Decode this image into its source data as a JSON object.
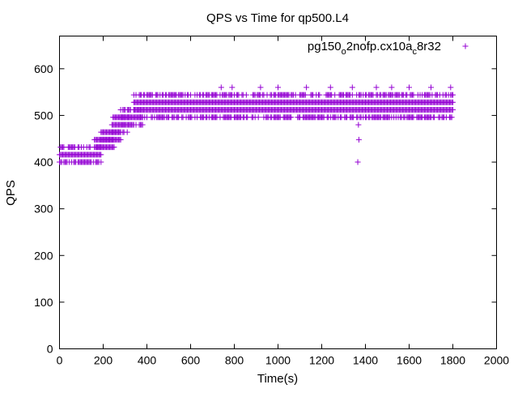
{
  "chart_data": {
    "type": "scatter",
    "title": "QPS vs Time for qp500.L4",
    "xlabel": "Time(s)",
    "ylabel": "QPS",
    "xlim": [
      0,
      2000
    ],
    "ylim": [
      0,
      670
    ],
    "xticks": [
      0,
      200,
      400,
      600,
      800,
      1000,
      1200,
      1400,
      1600,
      1800,
      2000
    ],
    "yticks": [
      0,
      100,
      200,
      300,
      400,
      500,
      600
    ],
    "grid": false,
    "legend_position": "top-right",
    "marker": "plus",
    "series": [
      {
        "name": "pg150_o2nofp.cx10a_c8r32",
        "name_parts": {
          "main": "pg150",
          "sub1": "o",
          "mid": "2nofp.cx10a",
          "sub2": "c",
          "tail": "8r32"
        },
        "color": "#9400d3",
        "levels": [
          400,
          416,
          432,
          448,
          464,
          480,
          496,
          512,
          528,
          544,
          560
        ],
        "segments": [
          {
            "x_start": 0,
            "x_end": 190,
            "levels": [
              400,
              416,
              432
            ]
          },
          {
            "x_start": 160,
            "x_end": 250,
            "levels": [
              432,
              448
            ]
          },
          {
            "x_start": 190,
            "x_end": 280,
            "levels": [
              448,
              464
            ]
          },
          {
            "x_start": 240,
            "x_end": 320,
            "levels": [
              464,
              480,
              496
            ]
          },
          {
            "x_start": 280,
            "x_end": 380,
            "levels": [
              480,
              496,
              512
            ]
          },
          {
            "x_start": 340,
            "x_end": 1800,
            "levels": [
              496,
              512,
              528,
              544
            ]
          }
        ],
        "outliers": [
          {
            "x": 1365,
            "y": 400
          },
          {
            "x": 1370,
            "y": 448
          },
          {
            "x": 1368,
            "y": 480
          },
          {
            "x": 740,
            "y": 560
          },
          {
            "x": 790,
            "y": 560
          },
          {
            "x": 920,
            "y": 560
          },
          {
            "x": 1000,
            "y": 560
          },
          {
            "x": 1130,
            "y": 560
          },
          {
            "x": 1240,
            "y": 560
          },
          {
            "x": 1340,
            "y": 560
          },
          {
            "x": 1450,
            "y": 560
          },
          {
            "x": 1520,
            "y": 560
          },
          {
            "x": 1600,
            "y": 560
          },
          {
            "x": 1700,
            "y": 560
          },
          {
            "x": 1790,
            "y": 560
          }
        ]
      }
    ]
  }
}
